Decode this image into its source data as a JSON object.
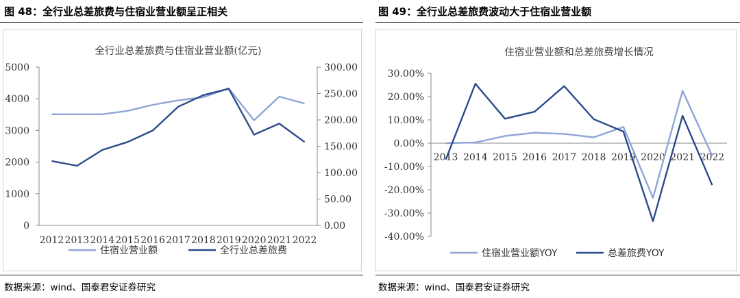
{
  "figures": [
    {
      "title": "图 48：全行业总差旅费与住宿业营业额呈正相关",
      "source": "数据来源：wind、国泰君安证券研究"
    },
    {
      "title": "图 49：全行业总差旅费波动大于住宿业营业额",
      "source": "数据来源：wind、国泰君安证券研究"
    }
  ],
  "chart_data": [
    {
      "type": "line",
      "title": "全行业总差旅费与住宿业营业额(亿元)",
      "x": [
        "2012",
        "2013",
        "2014",
        "2015",
        "2016",
        "2017",
        "2018",
        "2019",
        "2020",
        "2021",
        "2022"
      ],
      "x_ticks": [
        "2012",
        "2013",
        "2014",
        "2015",
        "2016",
        "2017",
        "2018",
        "2019",
        "2020",
        "2021",
        "2022"
      ],
      "y_left": {
        "lim": [
          0,
          5000
        ],
        "ticks": [
          "0",
          "1000",
          "2000",
          "3000",
          "4000",
          "5000"
        ]
      },
      "y_right": {
        "lim": [
          0,
          300
        ],
        "ticks": [
          "0.00",
          "50.00",
          "100.00",
          "150.00",
          "200.00",
          "250.00",
          "300.00"
        ]
      },
      "series": [
        {
          "name": "住宿业营业额",
          "axis": "left",
          "color": "#8fa4d6",
          "values": [
            3510,
            3510,
            3510,
            3620,
            3810,
            3950,
            4050,
            4330,
            3320,
            4070,
            3850
          ]
        },
        {
          "name": "全行业总差旅费",
          "axis": "right",
          "color": "#2b4a8a",
          "values": [
            122,
            113,
            143,
            158,
            180,
            225,
            247,
            259,
            172,
            193,
            158
          ]
        }
      ],
      "legend": "bottom",
      "grid": false
    },
    {
      "type": "line",
      "title": "住宿业营业额和总差旅费增长情况",
      "x": [
        "2013",
        "2014",
        "2015",
        "2016",
        "2017",
        "2018",
        "2019",
        "2020",
        "2021",
        "2022"
      ],
      "x_ticks": [
        "2013",
        "2014",
        "2015",
        "2016",
        "2017",
        "2018",
        "2019",
        "2020",
        "2021",
        "2022"
      ],
      "y": {
        "lim": [
          -40,
          30
        ],
        "ticks": [
          "30.00%",
          "20.00%",
          "10.00%",
          "0.00%",
          "-10.00%",
          "-20.00%",
          "-30.00%",
          "-40.00%"
        ]
      },
      "series": [
        {
          "name": "住宿业营业额YOY",
          "color": "#8fa4d6",
          "values": [
            0.0,
            0.3,
            3.1,
            4.5,
            4.0,
            2.5,
            7.0,
            -23.5,
            22.5,
            -5.4
          ]
        },
        {
          "name": "总差旅费YOY",
          "color": "#2b4a8a",
          "values": [
            -7.0,
            25.5,
            10.5,
            13.5,
            24.5,
            10.3,
            5.0,
            -33.5,
            11.8,
            -18.0
          ]
        }
      ],
      "legend": "bottom",
      "grid": false
    }
  ]
}
